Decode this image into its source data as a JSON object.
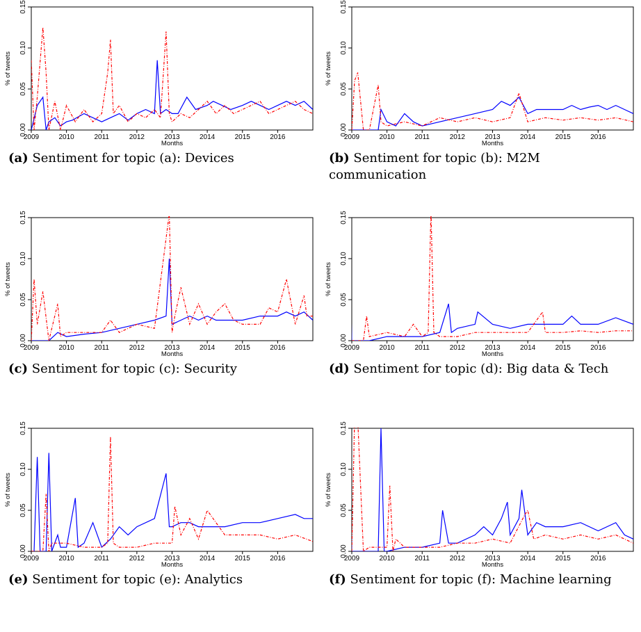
{
  "charts": [
    {
      "tag": "(a)",
      "caption": "Sentiment for topic (a): Devices"
    },
    {
      "tag": "(b)",
      "caption": "Sentiment for topic (b): M2M communication"
    },
    {
      "tag": "(c)",
      "caption": "Sentiment for topic (c): Security"
    },
    {
      "tag": "(d)",
      "caption": "Sentiment for topic (d): Big data & Tech"
    },
    {
      "tag": "(e)",
      "caption": "Sentiment for topic (e): Analytics"
    },
    {
      "tag": "(f)",
      "caption": "Sentiment for topic (f): Machine learning"
    }
  ],
  "chart_data": [
    {
      "type": "line",
      "xlabel": "Months",
      "ylabel": "% of tweets",
      "ylim": [
        0,
        0.15
      ],
      "yticks": [
        "0.00",
        "0.05",
        "0.10",
        "0.15"
      ],
      "xticks": [
        "2009",
        "2010",
        "2011",
        "2012",
        "2013",
        "2014",
        "2015",
        "2016"
      ],
      "xlim": [
        2009.0,
        2017.0
      ],
      "series": [
        {
          "color": "#0000ff",
          "style": "solid",
          "x": [
            2009.0,
            2009.17,
            2009.33,
            2009.42,
            2009.5,
            2009.67,
            2009.83,
            2010.0,
            2010.17,
            2010.5,
            2010.75,
            2011.0,
            2011.25,
            2011.5,
            2011.75,
            2012.0,
            2012.25,
            2012.5,
            2012.58,
            2012.67,
            2012.83,
            2013.0,
            2013.17,
            2013.42,
            2013.67,
            2014.0,
            2014.17,
            2014.42,
            2014.67,
            2015.0,
            2015.25,
            2015.5,
            2015.75,
            2016.0,
            2016.25,
            2016.5,
            2016.75,
            2017.0
          ],
          "values": [
            0.0,
            0.03,
            0.04,
            0.0,
            0.01,
            0.015,
            0.005,
            0.01,
            0.012,
            0.02,
            0.015,
            0.01,
            0.015,
            0.02,
            0.012,
            0.02,
            0.025,
            0.02,
            0.085,
            0.02,
            0.025,
            0.02,
            0.02,
            0.04,
            0.025,
            0.03,
            0.035,
            0.03,
            0.025,
            0.03,
            0.035,
            0.03,
            0.025,
            0.03,
            0.035,
            0.03,
            0.035,
            0.025
          ]
        },
        {
          "color": "#ff0000",
          "style": "dashdot",
          "x": [
            2009.0,
            2009.08,
            2009.17,
            2009.33,
            2009.42,
            2009.5,
            2009.67,
            2009.83,
            2010.0,
            2010.25,
            2010.5,
            2010.75,
            2011.0,
            2011.17,
            2011.25,
            2011.33,
            2011.5,
            2011.75,
            2012.0,
            2012.25,
            2012.5,
            2012.67,
            2012.83,
            2012.92,
            2013.0,
            2013.25,
            2013.5,
            2013.75,
            2014.0,
            2014.25,
            2014.5,
            2014.75,
            2015.0,
            2015.25,
            2015.5,
            2015.75,
            2016.0,
            2016.25,
            2016.5,
            2016.75,
            2017.0
          ],
          "values": [
            0.085,
            0.0,
            0.04,
            0.125,
            0.07,
            0.0,
            0.035,
            0.0,
            0.03,
            0.01,
            0.025,
            0.01,
            0.02,
            0.07,
            0.11,
            0.02,
            0.03,
            0.01,
            0.02,
            0.015,
            0.025,
            0.015,
            0.12,
            0.02,
            0.01,
            0.02,
            0.015,
            0.025,
            0.035,
            0.02,
            0.03,
            0.02,
            0.025,
            0.03,
            0.035,
            0.02,
            0.025,
            0.03,
            0.035,
            0.025,
            0.02
          ]
        }
      ]
    },
    {
      "type": "line",
      "xlabel": "Months",
      "ylabel": "% of tweets",
      "ylim": [
        0,
        0.15
      ],
      "yticks": [
        "0.00",
        "0.05",
        "0.10",
        "0.15"
      ],
      "xticks": [
        "2009",
        "2010",
        "2011",
        "2012",
        "2013",
        "2014",
        "2015",
        "2016"
      ],
      "xlim": [
        2009.0,
        2017.0
      ],
      "series": [
        {
          "color": "#0000ff",
          "style": "solid",
          "x": [
            2009.0,
            2009.5,
            2009.75,
            2009.83,
            2010.0,
            2010.25,
            2010.5,
            2010.75,
            2011.0,
            2011.5,
            2012.0,
            2012.5,
            2013.0,
            2013.25,
            2013.5,
            2013.75,
            2014.0,
            2014.25,
            2014.5,
            2014.75,
            2015.0,
            2015.25,
            2015.5,
            2015.75,
            2016.0,
            2016.25,
            2016.5,
            2016.75,
            2017.0
          ],
          "values": [
            0.0,
            0.0,
            0.0,
            0.025,
            0.01,
            0.005,
            0.02,
            0.01,
            0.005,
            0.01,
            0.015,
            0.02,
            0.025,
            0.035,
            0.03,
            0.04,
            0.02,
            0.025,
            0.025,
            0.025,
            0.025,
            0.03,
            0.025,
            0.028,
            0.03,
            0.025,
            0.03,
            0.025,
            0.02
          ]
        },
        {
          "color": "#ff0000",
          "style": "dashdot",
          "x": [
            2009.0,
            2009.08,
            2009.17,
            2009.33,
            2009.5,
            2009.75,
            2009.83,
            2010.0,
            2010.5,
            2011.0,
            2011.5,
            2012.0,
            2012.5,
            2013.0,
            2013.5,
            2013.75,
            2014.0,
            2014.5,
            2015.0,
            2015.5,
            2016.0,
            2016.5,
            2017.0
          ],
          "values": [
            0.0,
            0.06,
            0.07,
            0.0,
            0.0,
            0.055,
            0.01,
            0.005,
            0.01,
            0.005,
            0.015,
            0.01,
            0.015,
            0.01,
            0.015,
            0.045,
            0.01,
            0.015,
            0.012,
            0.015,
            0.012,
            0.015,
            0.01
          ]
        }
      ]
    },
    {
      "type": "line",
      "xlabel": "Months",
      "ylabel": "% of tweets",
      "ylim": [
        0,
        0.15
      ],
      "yticks": [
        "0.00",
        "0.05",
        "0.10",
        "0.15"
      ],
      "xticks": [
        "2009",
        "2010",
        "2011",
        "2012",
        "2013",
        "2014",
        "2015",
        "2016"
      ],
      "xlim": [
        2009.0,
        2017.0
      ],
      "series": [
        {
          "color": "#0000ff",
          "style": "solid",
          "x": [
            2009.0,
            2009.5,
            2009.75,
            2010.0,
            2010.5,
            2011.0,
            2011.5,
            2012.0,
            2012.5,
            2012.83,
            2012.92,
            2013.0,
            2013.25,
            2013.5,
            2013.75,
            2014.0,
            2014.25,
            2014.5,
            2015.0,
            2015.5,
            2016.0,
            2016.25,
            2016.5,
            2016.75,
            2017.0
          ],
          "values": [
            0.0,
            0.0,
            0.01,
            0.005,
            0.008,
            0.01,
            0.015,
            0.02,
            0.025,
            0.03,
            0.1,
            0.02,
            0.025,
            0.03,
            0.025,
            0.03,
            0.025,
            0.025,
            0.025,
            0.03,
            0.03,
            0.035,
            0.03,
            0.035,
            0.025
          ]
        },
        {
          "color": "#ff0000",
          "style": "dashdot",
          "x": [
            2009.0,
            2009.08,
            2009.17,
            2009.33,
            2009.5,
            2009.75,
            2009.83,
            2010.0,
            2010.5,
            2011.0,
            2011.25,
            2011.5,
            2012.0,
            2012.5,
            2012.92,
            2013.0,
            2013.08,
            2013.25,
            2013.5,
            2013.75,
            2014.0,
            2014.25,
            2014.5,
            2014.75,
            2015.0,
            2015.5,
            2015.75,
            2016.0,
            2016.25,
            2016.5,
            2016.75,
            2016.83,
            2017.0
          ],
          "values": [
            0.0,
            0.075,
            0.02,
            0.06,
            0.0,
            0.045,
            0.005,
            0.01,
            0.01,
            0.01,
            0.025,
            0.01,
            0.02,
            0.015,
            0.155,
            0.01,
            0.03,
            0.065,
            0.02,
            0.045,
            0.02,
            0.035,
            0.045,
            0.025,
            0.02,
            0.02,
            0.04,
            0.035,
            0.075,
            0.02,
            0.055,
            0.03,
            0.03
          ]
        }
      ]
    },
    {
      "type": "line",
      "xlabel": "Months",
      "ylabel": "% of tweets",
      "ylim": [
        0,
        0.15
      ],
      "yticks": [
        "0.00",
        "0.05",
        "0.10",
        "0.15"
      ],
      "xticks": [
        "2009",
        "2010",
        "2011",
        "2012",
        "2013",
        "2014",
        "2015",
        "2016"
      ],
      "xlim": [
        2009.0,
        2017.0
      ],
      "series": [
        {
          "color": "#0000ff",
          "style": "solid",
          "x": [
            2008.92,
            2009.0,
            2009.5,
            2010.0,
            2010.5,
            2011.0,
            2011.5,
            2011.75,
            2011.83,
            2012.0,
            2012.5,
            2012.58,
            2013.0,
            2013.5,
            2014.0,
            2014.5,
            2015.0,
            2015.25,
            2015.5,
            2016.0,
            2016.5,
            2017.0
          ],
          "values": [
            0.14,
            0.0,
            0.0,
            0.005,
            0.005,
            0.005,
            0.01,
            0.045,
            0.01,
            0.015,
            0.02,
            0.035,
            0.02,
            0.015,
            0.02,
            0.02,
            0.02,
            0.03,
            0.02,
            0.02,
            0.028,
            0.02
          ]
        },
        {
          "color": "#ff0000",
          "style": "dashdot",
          "x": [
            2009.0,
            2009.33,
            2009.42,
            2009.5,
            2010.0,
            2010.5,
            2010.75,
            2011.0,
            2011.17,
            2011.25,
            2011.33,
            2011.5,
            2012.0,
            2012.5,
            2013.0,
            2013.5,
            2014.0,
            2014.42,
            2014.5,
            2015.0,
            2015.5,
            2016.0,
            2016.5,
            2017.0
          ],
          "values": [
            0.0,
            0.0,
            0.03,
            0.005,
            0.01,
            0.005,
            0.02,
            0.005,
            0.01,
            0.16,
            0.01,
            0.005,
            0.005,
            0.01,
            0.01,
            0.01,
            0.01,
            0.035,
            0.01,
            0.01,
            0.012,
            0.01,
            0.012,
            0.012
          ]
        }
      ]
    },
    {
      "type": "line",
      "xlabel": "Months",
      "ylabel": "% of tweets",
      "ylim": [
        0,
        0.15
      ],
      "yticks": [
        "0.00",
        "0.05",
        "0.10",
        "0.15"
      ],
      "xticks": [
        "2009",
        "2010",
        "2011",
        "2012",
        "2013",
        "2014",
        "2015",
        "2016"
      ],
      "xlim": [
        2009.0,
        2017.0
      ],
      "series": [
        {
          "color": "#0000ff",
          "style": "solid",
          "x": [
            2009.0,
            2009.08,
            2009.17,
            2009.25,
            2009.42,
            2009.5,
            2009.58,
            2009.75,
            2009.83,
            2010.0,
            2010.25,
            2010.33,
            2010.5,
            2010.75,
            2011.0,
            2011.25,
            2011.5,
            2011.75,
            2012.0,
            2012.5,
            2012.83,
            2012.92,
            2013.0,
            2013.25,
            2013.5,
            2013.75,
            2014.0,
            2014.5,
            2015.0,
            2015.5,
            2016.0,
            2016.5,
            2016.75,
            2017.0
          ],
          "values": [
            0.0,
            0.0,
            0.115,
            0.0,
            0.0,
            0.12,
            0.0,
            0.02,
            0.005,
            0.005,
            0.065,
            0.005,
            0.01,
            0.035,
            0.005,
            0.015,
            0.03,
            0.02,
            0.03,
            0.04,
            0.095,
            0.03,
            0.03,
            0.035,
            0.035,
            0.03,
            0.03,
            0.03,
            0.035,
            0.035,
            0.04,
            0.045,
            0.04,
            0.04
          ]
        },
        {
          "color": "#ff0000",
          "style": "dashdot",
          "x": [
            2009.0,
            2009.33,
            2009.42,
            2009.5,
            2009.58,
            2010.0,
            2010.5,
            2011.0,
            2011.17,
            2011.25,
            2011.33,
            2011.5,
            2012.0,
            2012.5,
            2013.0,
            2013.08,
            2013.25,
            2013.5,
            2013.75,
            2014.0,
            2014.5,
            2015.0,
            2015.5,
            2016.0,
            2016.5,
            2017.0
          ],
          "values": [
            0.0,
            0.0,
            0.07,
            0.0,
            0.01,
            0.01,
            0.005,
            0.005,
            0.01,
            0.14,
            0.01,
            0.005,
            0.005,
            0.01,
            0.01,
            0.055,
            0.02,
            0.04,
            0.015,
            0.05,
            0.02,
            0.02,
            0.02,
            0.015,
            0.02,
            0.012
          ]
        }
      ]
    },
    {
      "type": "line",
      "xlabel": "Months",
      "ylabel": "% of tweets",
      "ylim": [
        0,
        0.15
      ],
      "yticks": [
        "0.00",
        "0.05",
        "0.10",
        "0.15"
      ],
      "xticks": [
        "2009",
        "2010",
        "2011",
        "2012",
        "2013",
        "2014",
        "2015",
        "2016"
      ],
      "xlim": [
        2009.0,
        2017.0
      ],
      "series": [
        {
          "color": "#0000ff",
          "style": "solid",
          "x": [
            2008.92,
            2009.0,
            2009.08,
            2009.5,
            2009.75,
            2009.83,
            2009.92,
            2010.0,
            2010.5,
            2011.0,
            2011.5,
            2011.58,
            2011.75,
            2012.0,
            2012.5,
            2012.75,
            2013.0,
            2013.25,
            2013.42,
            2013.5,
            2013.75,
            2013.83,
            2014.0,
            2014.25,
            2014.5,
            2015.0,
            2015.5,
            2016.0,
            2016.5,
            2016.75,
            2017.0
          ],
          "values": [
            0.16,
            0.0,
            0.0,
            0.0,
            0.0,
            0.15,
            0.0,
            0.0,
            0.005,
            0.005,
            0.01,
            0.05,
            0.01,
            0.01,
            0.02,
            0.03,
            0.02,
            0.04,
            0.06,
            0.02,
            0.04,
            0.075,
            0.02,
            0.035,
            0.03,
            0.03,
            0.035,
            0.025,
            0.035,
            0.02,
            0.015
          ]
        },
        {
          "color": "#ff0000",
          "style": "dashdot",
          "x": [
            2009.0,
            2009.08,
            2009.17,
            2009.33,
            2009.5,
            2010.0,
            2010.08,
            2010.17,
            2010.25,
            2010.5,
            2011.0,
            2011.5,
            2012.0,
            2012.5,
            2013.0,
            2013.5,
            2013.92,
            2014.0,
            2014.17,
            2014.5,
            2015.0,
            2015.5,
            2016.0,
            2016.5,
            2017.0
          ],
          "values": [
            0.0,
            0.16,
            0.16,
            0.0,
            0.005,
            0.005,
            0.08,
            0.0,
            0.015,
            0.005,
            0.005,
            0.005,
            0.01,
            0.01,
            0.015,
            0.01,
            0.045,
            0.05,
            0.015,
            0.02,
            0.015,
            0.02,
            0.015,
            0.02,
            0.01
          ]
        }
      ]
    }
  ]
}
